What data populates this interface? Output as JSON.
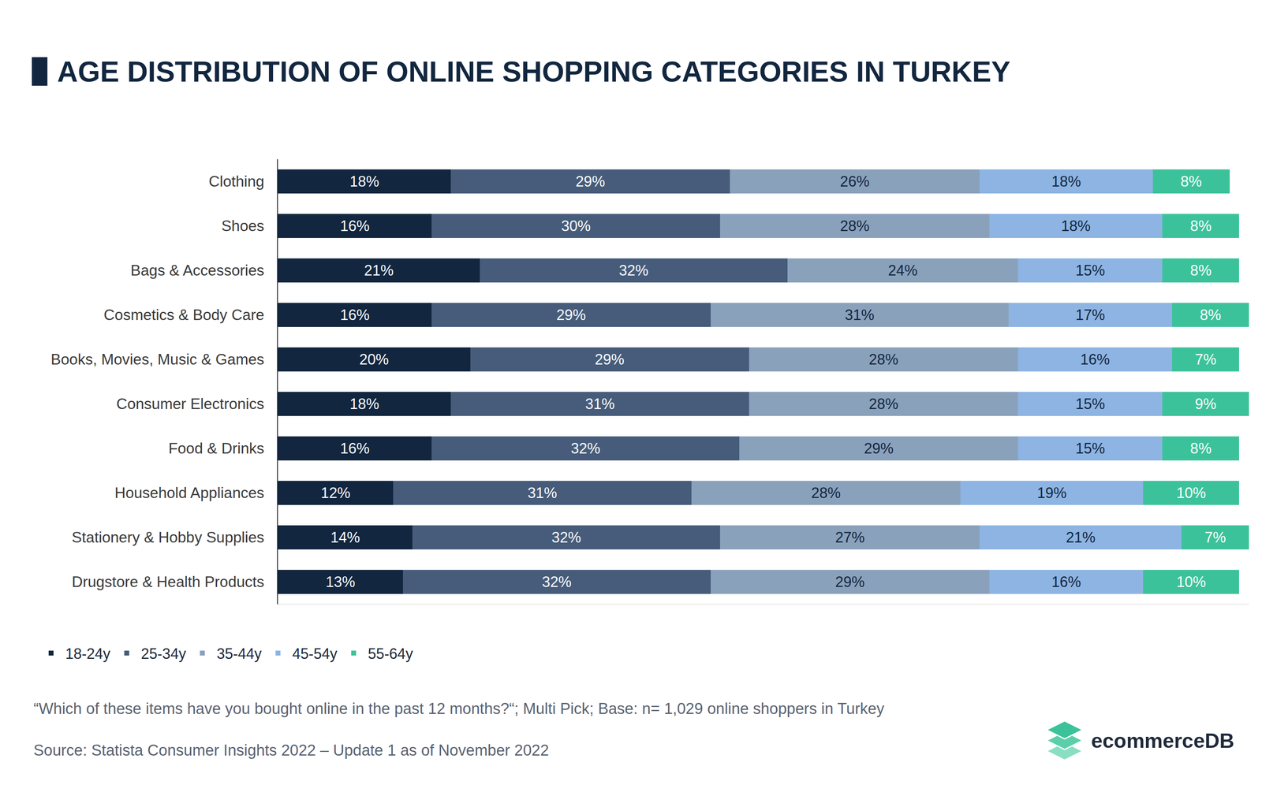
{
  "chart_data": {
    "type": "bar",
    "title": "AGE DISTRIBUTION OF ONLINE SHOPPING CATEGORIES IN TURKEY",
    "orientation": "horizontal",
    "stacked": true,
    "data_labels": true,
    "tick_labels": "y",
    "grid": false,
    "legend": "bottom left",
    "xlim": [
      0,
      101
    ],
    "categories": [
      "Clothing",
      "Shoes",
      "Bags & Accessories",
      "Cosmetics & Body Care",
      "Books, Movies, Music & Games",
      "Consumer Electronics",
      "Food & Drinks",
      "Household Appliances",
      "Stationery & Hobby Supplies",
      "Drugstore & Health Products"
    ],
    "series": [
      {
        "name": "18-24y",
        "color": "#12263f",
        "values": [
          18,
          16,
          21,
          16,
          20,
          18,
          16,
          12,
          14,
          13
        ],
        "value_labels": [
          "18%",
          "16%",
          "21%",
          "16%",
          "20%",
          "18%",
          "16%",
          "12%",
          "14%",
          "13%"
        ]
      },
      {
        "name": "25-34y",
        "color": "#465c7a",
        "values": [
          29,
          30,
          32,
          29,
          29,
          31,
          32,
          31,
          32,
          32
        ],
        "value_labels": [
          "29%",
          "30%",
          "32%",
          "29%",
          "29%",
          "31%",
          "32%",
          "31%",
          "32%",
          "32%"
        ]
      },
      {
        "name": "35-44y",
        "color": "#8aa1bb",
        "values": [
          26,
          28,
          24,
          31,
          28,
          28,
          29,
          28,
          27,
          29
        ],
        "value_labels": [
          "26%",
          "28%",
          "24%",
          "31%",
          "28%",
          "28%",
          "29%",
          "28%",
          "27%",
          "29%"
        ]
      },
      {
        "name": "45-54y",
        "color": "#8db4e2",
        "values": [
          18,
          18,
          15,
          17,
          16,
          15,
          15,
          19,
          21,
          16
        ],
        "value_labels": [
          "18%",
          "18%",
          "15%",
          "17%",
          "16%",
          "15%",
          "15%",
          "19%",
          "21%",
          "16%"
        ]
      },
      {
        "name": "55-64y",
        "color": "#3cc29a",
        "values": [
          8,
          8,
          8,
          8,
          7,
          9,
          8,
          10,
          7,
          10
        ],
        "value_labels": [
          "8%",
          "8%",
          "8%",
          "8%",
          "7%",
          "9%",
          "8%",
          "10%",
          "7%",
          "10%"
        ]
      }
    ],
    "annotations": [
      "“Which of these items have you bought online in the past 12 months?“; Multi Pick; Base: n= 1,029 online shoppers in Turkey",
      "Source: Statista Consumer Insights 2022 – Update 1 as of November 2022",
      "ecommerceDB"
    ]
  }
}
